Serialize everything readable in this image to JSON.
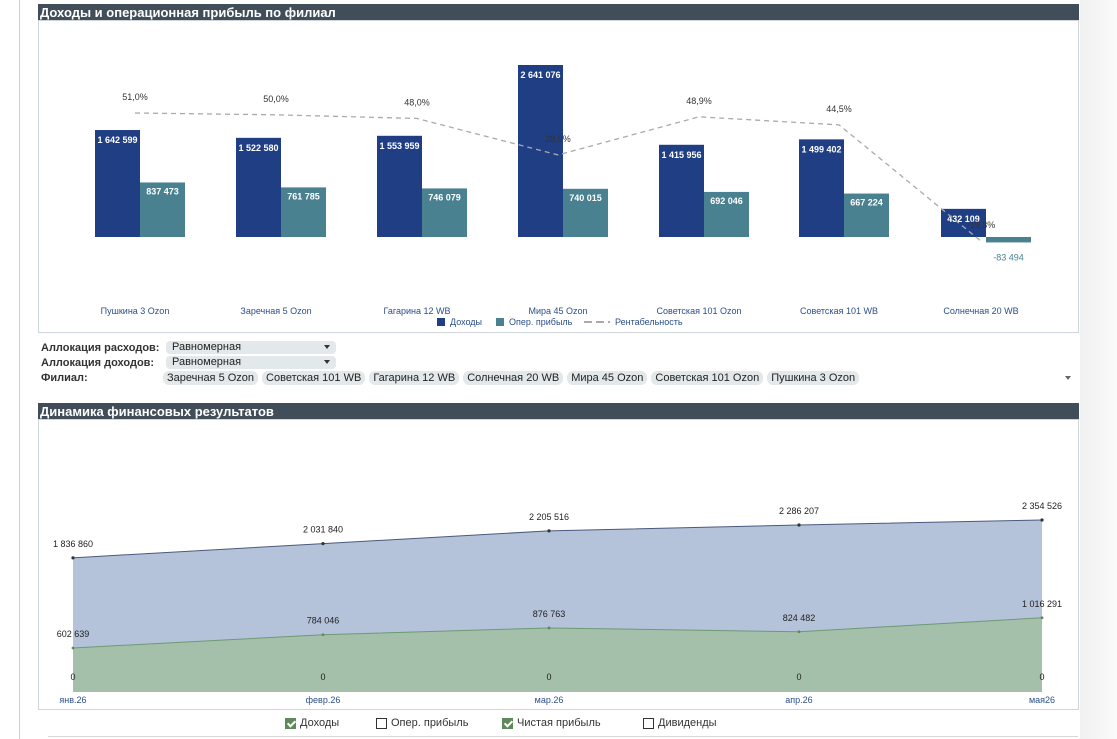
{
  "colors": {
    "revenue": "#1f3e84",
    "opprofit": "#4a8191",
    "margin_line": "#aaaaaa",
    "area_revenue": "#b4c2da",
    "area_net": "#a4c0aa",
    "header_bg": "#414e5a"
  },
  "panel1": {
    "title": "Доходы и операционная прибыль по филиал"
  },
  "controls": {
    "expense_label": "Аллокация расходов:",
    "expense_value": "Равномерная",
    "income_label": "Аллокация доходов:",
    "income_value": "Равномерная",
    "branch_label": "Филиал:",
    "branches": [
      "Заречная 5 Ozon",
      "Советская 101 WB",
      "Гагарина 12 WB",
      "Солнечная 20 WB",
      "Мира 45 Ozon",
      "Советская 101 Ozon",
      "Пушкина 3 Ozon"
    ]
  },
  "panel2": {
    "title": "Динамика финансовых результатов"
  },
  "toggles": [
    {
      "label": "Доходы",
      "checked": true
    },
    {
      "label": "Опер. прибыль",
      "checked": false
    },
    {
      "label": "Чистая прибыль",
      "checked": true
    },
    {
      "label": "Дивиденды",
      "checked": false
    }
  ],
  "chart_data": [
    {
      "type": "bar",
      "title": "Доходы и операционная прибыль по филиал",
      "categories": [
        "Пушкина 3 Ozon",
        "Заречная 5 Ozon",
        "Гагарина 12 WB",
        "Мира 45 Ozon",
        "Советская 101 Ozon",
        "Советская 101 WB",
        "Солнечная 20 WB"
      ],
      "series": [
        {
          "name": "Доходы",
          "type": "bar",
          "values": [
            1642599,
            1522580,
            1553959,
            2641076,
            1415956,
            1499402,
            432109
          ],
          "labels": [
            "1 642 599",
            "1 522 580",
            "1 553 959",
            "2 641 076",
            "1 415 956",
            "1 499 402",
            "432 109"
          ]
        },
        {
          "name": "Опер. прибыль",
          "type": "bar",
          "values": [
            837473,
            761785,
            746079,
            740015,
            692046,
            667224,
            -83494
          ],
          "labels": [
            "837 473",
            "761 785",
            "746 079",
            "740 015",
            "692 046",
            "667 224",
            "-83 494"
          ]
        },
        {
          "name": "Рентабельность",
          "type": "line",
          "values": [
            51.0,
            50.0,
            48.0,
            28.0,
            48.9,
            44.5,
            -19.3
          ],
          "labels": [
            "51,0%",
            "50,0%",
            "48,0%",
            "28,0%",
            "48,9%",
            "44,5%",
            "-19,3%"
          ]
        }
      ],
      "legend": "bottom-center"
    },
    {
      "type": "area",
      "title": "Динамика финансовых результатов",
      "categories": [
        "янв.26",
        "февр.26",
        "мар.26",
        "апр.26",
        "мая26"
      ],
      "series": [
        {
          "name": "Доходы",
          "values": [
            1836860,
            2031840,
            2205516,
            2286207,
            2354526
          ],
          "labels": [
            "1 836 860",
            "2 031 840",
            "2 205 516",
            "2 286 207",
            "2 354 526"
          ]
        },
        {
          "name": "Чистая прибыль",
          "values": [
            602639,
            784046,
            876763,
            824482,
            1016291
          ],
          "labels": [
            "602 639",
            "784 046",
            "876 763",
            "824 482",
            "1 016 291"
          ]
        },
        {
          "name": "Дивиденды",
          "values": [
            0,
            0,
            0,
            0,
            0
          ],
          "labels": [
            "0",
            "0",
            "0",
            "0",
            "0"
          ]
        }
      ]
    }
  ]
}
